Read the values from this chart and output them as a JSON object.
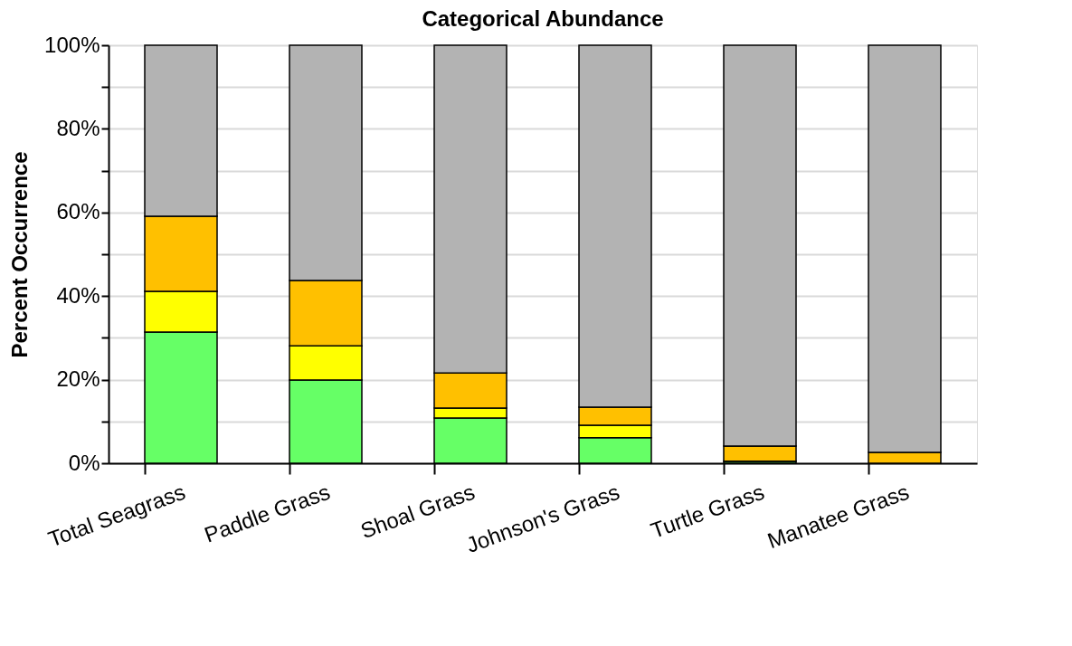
{
  "chart_data": {
    "type": "bar",
    "title": "Categorical Abundance",
    "ylabel": "Percent Occurrence",
    "categories": [
      "Total Seagrass",
      "Paddle Grass",
      "Shoal Grass",
      "Johnson's Grass",
      "Turtle Grass",
      "Manatee Grass"
    ],
    "stacked": true,
    "series": [
      {
        "color": "#66ff66",
        "values": [
          31.4,
          19.9,
          10.8,
          6.1,
          0.5,
          0
        ]
      },
      {
        "color": "#ffff00",
        "values": [
          9.7,
          8.2,
          2.4,
          3.0,
          0,
          0
        ]
      },
      {
        "color": "#ffc000",
        "values": [
          18.0,
          15.6,
          8.4,
          4.3,
          3.6,
          2.6
        ]
      },
      {
        "color": "#b3b3b3",
        "values": [
          40.9,
          56.3,
          78.4,
          86.6,
          95.9,
          97.4
        ]
      }
    ],
    "ylim": [
      0,
      100
    ],
    "yticks": [
      {
        "value": 0,
        "label": "0%"
      },
      {
        "value": 10,
        "label": null
      },
      {
        "value": 20,
        "label": "20%"
      },
      {
        "value": 30,
        "label": null
      },
      {
        "value": 40,
        "label": "40%"
      },
      {
        "value": 50,
        "label": null
      },
      {
        "value": 60,
        "label": "60%"
      },
      {
        "value": 70,
        "label": null
      },
      {
        "value": 80,
        "label": "80%"
      },
      {
        "value": 90,
        "label": null
      },
      {
        "value": 100,
        "label": "100%"
      }
    ],
    "grid": "y",
    "legend": false
  }
}
